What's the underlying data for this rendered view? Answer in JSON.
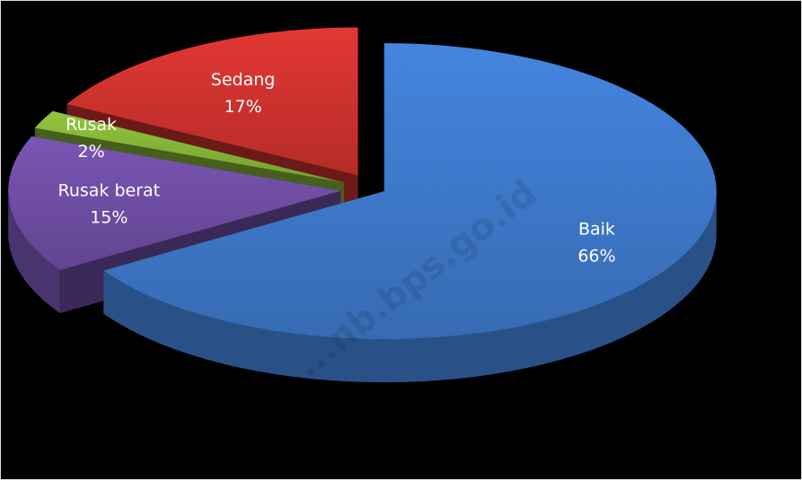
{
  "chart_data": {
    "type": "pie",
    "three_d": true,
    "exploded": true,
    "legend": "none",
    "slices": [
      {
        "label": "Baik",
        "value": 66,
        "value_label": "66%",
        "color": "#3b74c2"
      },
      {
        "label": "Rusak berat",
        "value": 15,
        "value_label": "15%",
        "color": "#6a4a9c"
      },
      {
        "label": "Rusak",
        "value": 2,
        "value_label": "2%",
        "color": "#7fad34"
      },
      {
        "label": "Sedang",
        "value": 17,
        "value_label": "17%",
        "color": "#c5302c"
      }
    ]
  },
  "watermark": "...nb.bps.go.id",
  "background_color": "#000000"
}
